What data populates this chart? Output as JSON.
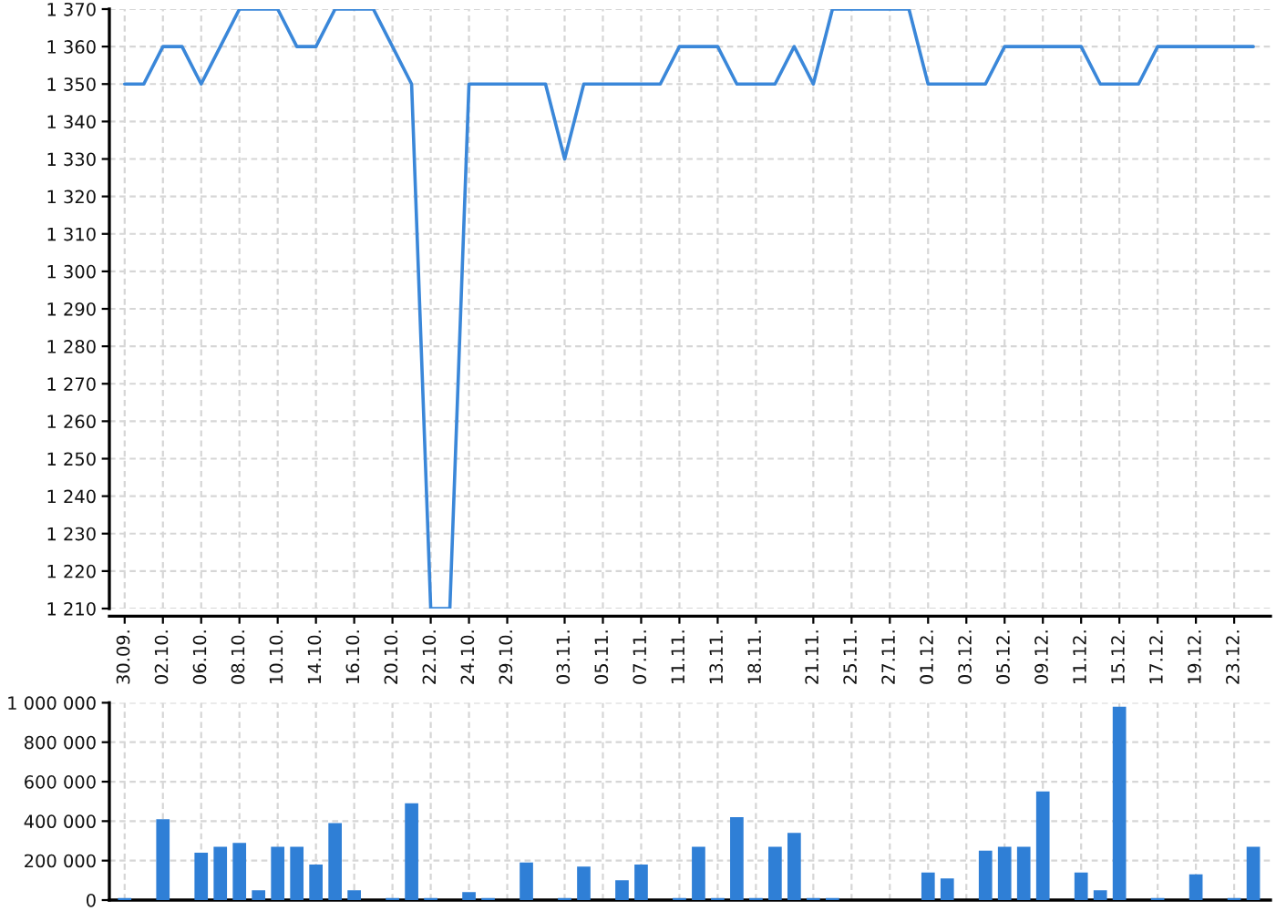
{
  "chart_data": [
    {
      "type": "line",
      "categories": [
        "30.09.",
        null,
        "02.10.",
        null,
        "06.10.",
        null,
        "08.10.",
        null,
        "10.10.",
        null,
        "14.10.",
        null,
        "16.10.",
        null,
        "20.10.",
        null,
        "22.10.",
        null,
        "24.10.",
        null,
        "29.10.",
        null,
        null,
        "03.11.",
        null,
        "05.11.",
        null,
        "07.11.",
        null,
        "11.11.",
        null,
        "13.11.",
        null,
        "18.11.",
        null,
        null,
        "21.11.",
        null,
        "25.11.",
        null,
        "27.11.",
        null,
        "01.12.",
        null,
        "03.12.",
        null,
        "05.12.",
        null,
        "09.12.",
        null,
        "11.12.",
        null,
        "15.12.",
        null,
        "17.12.",
        null,
        "19.12.",
        null,
        "23.12.",
        null
      ],
      "series": [
        {
          "color": "#3a87d9",
          "values": [
            1350,
            1350,
            1360,
            1360,
            1350,
            1360,
            1370,
            1370,
            1370,
            1360,
            1360,
            1370,
            1370,
            1370,
            1360,
            1350,
            1210,
            1210,
            1350,
            1350,
            1350,
            1350,
            1350,
            1330,
            1350,
            1350,
            1350,
            1350,
            1350,
            1360,
            1360,
            1360,
            1350,
            1350,
            1350,
            1360,
            1350,
            1370,
            1370,
            1370,
            1370,
            1370,
            1350,
            1350,
            1350,
            1350,
            1360,
            1360,
            1360,
            1360,
            1360,
            1350,
            1350,
            1350,
            1360,
            1360,
            1360,
            1360,
            1360,
            1360
          ]
        }
      ],
      "ylim": [
        1210,
        1370
      ],
      "yticks": [
        {
          "value": 1210,
          "label": "1 210"
        },
        {
          "value": 1220,
          "label": "1 220"
        },
        {
          "value": 1230,
          "label": "1 230"
        },
        {
          "value": 1240,
          "label": "1 240"
        },
        {
          "value": 1250,
          "label": "1 250"
        },
        {
          "value": 1260,
          "label": "1 260"
        },
        {
          "value": 1270,
          "label": "1 270"
        },
        {
          "value": 1280,
          "label": "1 280"
        },
        {
          "value": 1290,
          "label": "1 290"
        },
        {
          "value": 1300,
          "label": "1 300"
        },
        {
          "value": 1310,
          "label": "1 310"
        },
        {
          "value": 1320,
          "label": "1 320"
        },
        {
          "value": 1330,
          "label": "1 330"
        },
        {
          "value": 1340,
          "label": "1 340"
        },
        {
          "value": 1350,
          "label": "1 350"
        },
        {
          "value": 1360,
          "label": "1 360"
        },
        {
          "value": 1370,
          "label": "1 370"
        }
      ],
      "grid": true
    },
    {
      "type": "bar",
      "categories": [
        "30.09.",
        null,
        "02.10.",
        null,
        "06.10.",
        null,
        "08.10.",
        null,
        "10.10.",
        null,
        "14.10.",
        null,
        "16.10.",
        null,
        "20.10.",
        null,
        "22.10.",
        null,
        "24.10.",
        null,
        "29.10.",
        null,
        null,
        "03.11.",
        null,
        "05.11.",
        null,
        "07.11.",
        null,
        "11.11.",
        null,
        "13.11.",
        null,
        "18.11.",
        null,
        null,
        "21.11.",
        null,
        "25.11.",
        null,
        "27.11.",
        null,
        "01.12.",
        null,
        "03.12.",
        null,
        "05.12.",
        null,
        "09.12.",
        null,
        "11.12.",
        null,
        "15.12.",
        null,
        "17.12.",
        null,
        "19.12.",
        null,
        "23.12.",
        null
      ],
      "series": [
        {
          "color": "#2f7fd6",
          "values": [
            10000,
            null,
            410000,
            null,
            240000,
            270000,
            290000,
            50000,
            270000,
            270000,
            180000,
            390000,
            50000,
            null,
            10000,
            490000,
            10000,
            null,
            40000,
            10000,
            null,
            190000,
            null,
            10000,
            170000,
            null,
            100000,
            180000,
            null,
            10000,
            270000,
            10000,
            420000,
            10000,
            270000,
            340000,
            10000,
            10000,
            null,
            null,
            null,
            null,
            140000,
            110000,
            null,
            250000,
            270000,
            270000,
            550000,
            null,
            140000,
            50000,
            980000,
            null,
            10000,
            null,
            130000,
            null,
            10000,
            270000
          ]
        }
      ],
      "ylim": [
        0,
        1000000
      ],
      "yticks": [
        0,
        {
          "value": 200000,
          "label": "200 000"
        },
        {
          "value": 400000,
          "label": "400 000"
        },
        {
          "value": 600000,
          "label": "600 000"
        },
        {
          "value": 800000,
          "label": "800 000"
        },
        {
          "value": 1000000,
          "label": "1 000 000"
        }
      ],
      "grid": true,
      "tick_labels": "y"
    }
  ]
}
